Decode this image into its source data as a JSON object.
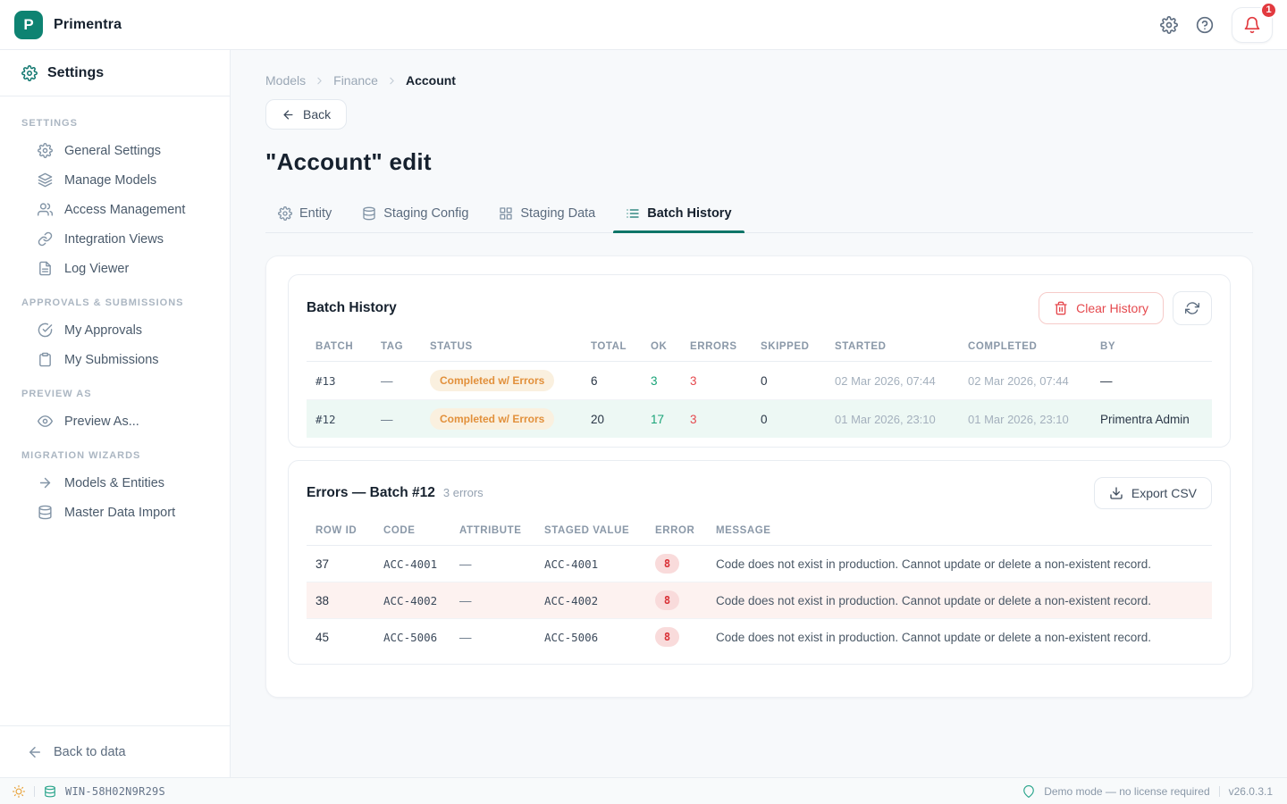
{
  "topbar": {
    "brand": "Primentra",
    "logo_letter": "P",
    "notification_count": "1"
  },
  "sidebar": {
    "header": "Settings",
    "sections": [
      {
        "title": "SETTINGS",
        "items": [
          {
            "label": "General Settings",
            "icon": "gear"
          },
          {
            "label": "Manage Models",
            "icon": "layers"
          },
          {
            "label": "Access Management",
            "icon": "users"
          },
          {
            "label": "Integration Views",
            "icon": "link"
          },
          {
            "label": "Log Viewer",
            "icon": "file-text"
          }
        ]
      },
      {
        "title": "APPROVALS & SUBMISSIONS",
        "items": [
          {
            "label": "My Approvals",
            "icon": "check-circle"
          },
          {
            "label": "My Submissions",
            "icon": "clipboard"
          }
        ]
      },
      {
        "title": "PREVIEW AS",
        "items": [
          {
            "label": "Preview As...",
            "icon": "eye"
          }
        ]
      },
      {
        "title": "MIGRATION WIZARDS",
        "items": [
          {
            "label": "Models & Entities",
            "icon": "arrow-right"
          },
          {
            "label": "Master Data Import",
            "icon": "database"
          }
        ]
      }
    ],
    "footer": {
      "label": "Back to data",
      "icon": "arrow-left"
    }
  },
  "breadcrumb": {
    "items": [
      "Models",
      "Finance",
      "Account"
    ]
  },
  "page": {
    "back_label": "Back",
    "title": "\"Account\" edit"
  },
  "tabs": [
    {
      "label": "Entity",
      "icon": "gear",
      "active": false
    },
    {
      "label": "Staging Config",
      "icon": "database",
      "active": false
    },
    {
      "label": "Staging Data",
      "icon": "grid",
      "active": false
    },
    {
      "label": "Batch History",
      "icon": "list",
      "active": true
    }
  ],
  "batch_history": {
    "title": "Batch History",
    "clear_button": "Clear History",
    "columns": [
      "BATCH",
      "TAG",
      "STATUS",
      "TOTAL",
      "OK",
      "ERRORS",
      "SKIPPED",
      "STARTED",
      "COMPLETED",
      "BY"
    ],
    "rows": [
      {
        "highlight": false,
        "cells": [
          {
            "t": "#13",
            "c": "mono"
          },
          {
            "t": "—",
            "c": "muted"
          },
          {
            "t": "Completed w/ Errors",
            "c": "pill"
          },
          {
            "t": "6",
            "c": ""
          },
          {
            "t": "3",
            "c": "green"
          },
          {
            "t": "3",
            "c": "red"
          },
          {
            "t": "0",
            "c": ""
          },
          {
            "t": "02 Mar 2026, 07:44",
            "c": "date"
          },
          {
            "t": "02 Mar 2026, 07:44",
            "c": "date"
          },
          {
            "t": "—",
            "c": ""
          }
        ]
      },
      {
        "highlight": "mint",
        "cells": [
          {
            "t": "#12",
            "c": "mono"
          },
          {
            "t": "—",
            "c": "muted"
          },
          {
            "t": "Completed w/ Errors",
            "c": "pill"
          },
          {
            "t": "20",
            "c": ""
          },
          {
            "t": "17",
            "c": "green"
          },
          {
            "t": "3",
            "c": "red"
          },
          {
            "t": "0",
            "c": ""
          },
          {
            "t": "01 Mar 2026, 23:10",
            "c": "date"
          },
          {
            "t": "01 Mar 2026, 23:10",
            "c": "date"
          },
          {
            "t": "Primentra Admin",
            "c": ""
          }
        ]
      }
    ]
  },
  "errors_panel": {
    "title": "Errors — Batch #12",
    "subtitle": "3 errors",
    "export_button": "Export CSV",
    "columns": [
      "ROW ID",
      "CODE",
      "ATTRIBUTE",
      "STAGED VALUE",
      "ERROR",
      "MESSAGE"
    ],
    "rows": [
      {
        "highlight": false,
        "cells": [
          {
            "t": "37",
            "c": ""
          },
          {
            "t": "ACC-4001",
            "c": "mono"
          },
          {
            "t": "—",
            "c": "muted"
          },
          {
            "t": "ACC-4001",
            "c": "mono"
          },
          {
            "t": "8",
            "c": "badge"
          },
          {
            "t": "Code does not exist in production. Cannot update or delete a non-existent record.",
            "c": "msg"
          }
        ]
      },
      {
        "highlight": "pink",
        "cells": [
          {
            "t": "38",
            "c": ""
          },
          {
            "t": "ACC-4002",
            "c": "mono"
          },
          {
            "t": "—",
            "c": "muted"
          },
          {
            "t": "ACC-4002",
            "c": "mono"
          },
          {
            "t": "8",
            "c": "badge"
          },
          {
            "t": "Code does not exist in production. Cannot update or delete a non-existent record.",
            "c": "msg"
          }
        ]
      },
      {
        "highlight": false,
        "cells": [
          {
            "t": "45",
            "c": ""
          },
          {
            "t": "ACC-5006",
            "c": "mono"
          },
          {
            "t": "—",
            "c": "muted"
          },
          {
            "t": "ACC-5006",
            "c": "mono"
          },
          {
            "t": "8",
            "c": "badge"
          },
          {
            "t": "Code does not exist in production. Cannot update or delete a non-existent record.",
            "c": "msg"
          }
        ]
      }
    ]
  },
  "statusbar": {
    "host": "WIN-58H02N9R29S",
    "demo_text": "Demo mode — no license required",
    "version": "v26.0.3.1"
  },
  "colors": {
    "brand_teal": "#0E8372",
    "accent_teal": "#0F766E",
    "danger_red": "#E5484D",
    "success_green": "#18A377",
    "warning_orange": "#E2903B",
    "mint_row": "#EDF8F4",
    "pink_row": "#FDF2F0"
  }
}
